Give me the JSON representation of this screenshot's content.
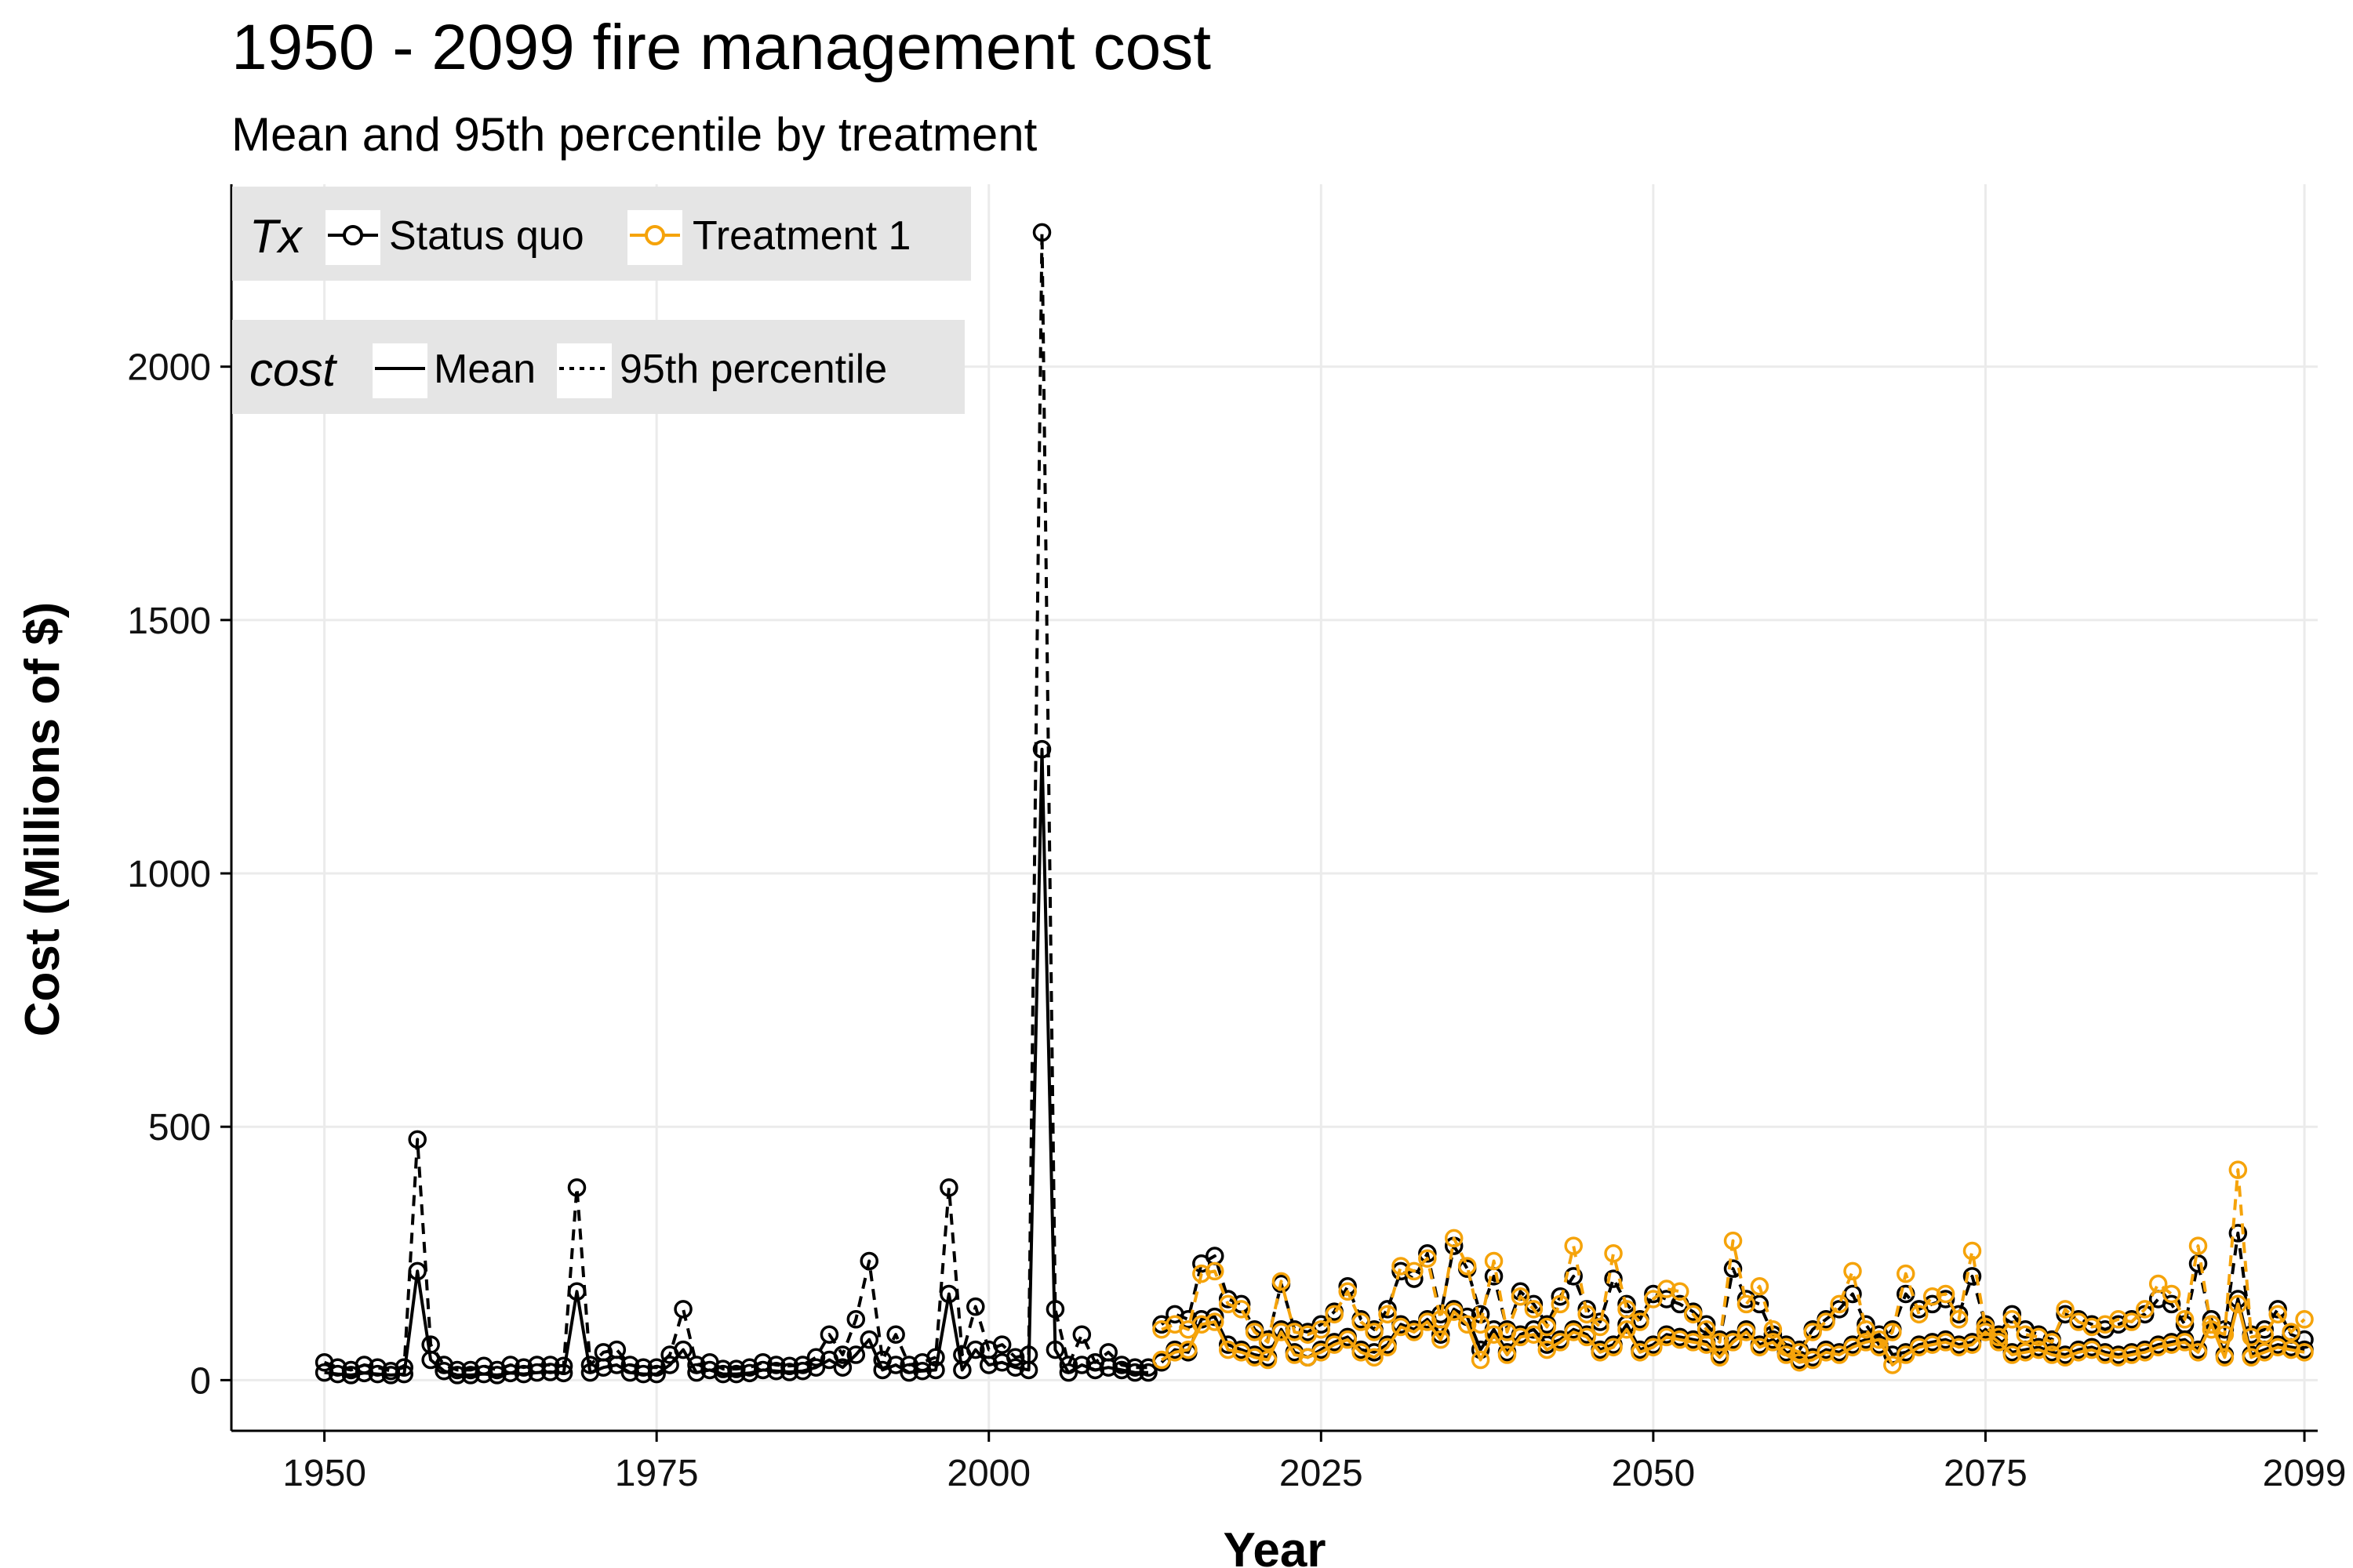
{
  "chart_data": {
    "type": "line",
    "title": "1950 - 2099 fire management cost",
    "subtitle": "Mean and 95th percentile by treatment",
    "xlabel": "Year",
    "ylabel": "Cost (Millions of $)",
    "xlim": [
      1943,
      2100
    ],
    "ylim": [
      -100,
      2360
    ],
    "x_ticks": [
      1950,
      1975,
      2000,
      2025,
      2050,
      2075,
      2099
    ],
    "y_ticks": [
      0,
      500,
      1000,
      1500,
      2000
    ],
    "grid": true,
    "legend": [
      {
        "title": "Tx",
        "entries": [
          {
            "label": "Status quo",
            "color": "#000000"
          },
          {
            "label": "Treatment 1",
            "color": "#f5a30a"
          }
        ]
      },
      {
        "title": "cost",
        "entries": [
          {
            "label": "Mean",
            "linetype": "solid"
          },
          {
            "label": "95th percentile",
            "linetype": "dotted"
          }
        ]
      }
    ],
    "legend_position": "top-left",
    "series": [
      {
        "tx": "Status quo",
        "cost": "Mean",
        "color": "#000000",
        "dash": "",
        "x": [
          1950,
          1951,
          1952,
          1953,
          1954,
          1955,
          1956,
          1957,
          1958,
          1959,
          1960,
          1961,
          1962,
          1963,
          1964,
          1965,
          1966,
          1967,
          1968,
          1969,
          1970,
          1971,
          1972,
          1973,
          1974,
          1975,
          1976,
          1977,
          1978,
          1979,
          1980,
          1981,
          1982,
          1983,
          1984,
          1985,
          1986,
          1987,
          1988,
          1989,
          1990,
          1991,
          1992,
          1993,
          1994,
          1995,
          1996,
          1997,
          1998,
          1999,
          2000,
          2001,
          2002,
          2003,
          2004,
          2005,
          2006,
          2007,
          2008,
          2009,
          2010,
          2011,
          2012
        ],
        "y": [
          15,
          12,
          10,
          14,
          12,
          10,
          12,
          215,
          40,
          18,
          10,
          10,
          12,
          10,
          14,
          12,
          15,
          16,
          14,
          175,
          15,
          25,
          30,
          15,
          12,
          12,
          30,
          60,
          15,
          20,
          12,
          12,
          14,
          20,
          18,
          16,
          18,
          25,
          40,
          25,
          50,
          80,
          20,
          30,
          15,
          18,
          20,
          170,
          20,
          60,
          30,
          35,
          25,
          20,
          1245,
          60,
          15,
          30,
          20,
          25,
          20,
          15,
          15
        ]
      },
      {
        "tx": "Status quo",
        "cost": "95th percentile",
        "color": "#000000",
        "dash": "14,10",
        "x": [
          1950,
          1951,
          1952,
          1953,
          1954,
          1955,
          1956,
          1957,
          1958,
          1959,
          1960,
          1961,
          1962,
          1963,
          1964,
          1965,
          1966,
          1967,
          1968,
          1969,
          1970,
          1971,
          1972,
          1973,
          1974,
          1975,
          1976,
          1977,
          1978,
          1979,
          1980,
          1981,
          1982,
          1983,
          1984,
          1985,
          1986,
          1987,
          1988,
          1989,
          1990,
          1991,
          1992,
          1993,
          1994,
          1995,
          1996,
          1997,
          1998,
          1999,
          2000,
          2001,
          2002,
          2003,
          2004,
          2005,
          2006,
          2007,
          2008,
          2009,
          2010,
          2011,
          2012
        ],
        "y": [
          35,
          25,
          20,
          30,
          25,
          18,
          25,
          475,
          70,
          30,
          20,
          20,
          28,
          20,
          30,
          25,
          30,
          30,
          28,
          380,
          30,
          55,
          60,
          30,
          25,
          25,
          50,
          140,
          30,
          35,
          22,
          22,
          25,
          35,
          30,
          28,
          30,
          45,
          90,
          50,
          120,
          235,
          40,
          90,
          30,
          35,
          45,
          380,
          50,
          145,
          60,
          70,
          45,
          50,
          2265,
          140,
          30,
          90,
          35,
          55,
          30,
          25,
          25
        ]
      },
      {
        "tx": "Status quo",
        "cost": "Mean",
        "color": "#000000",
        "dash": "",
        "x": [
          2013,
          2014,
          2015,
          2016,
          2017,
          2018,
          2019,
          2020,
          2021,
          2022,
          2023,
          2024,
          2025,
          2026,
          2027,
          2028,
          2029,
          2030,
          2031,
          2032,
          2033,
          2034,
          2035,
          2036,
          2037,
          2038,
          2039,
          2040,
          2041,
          2042,
          2043,
          2044,
          2045,
          2046,
          2047,
          2048,
          2049,
          2050,
          2051,
          2052,
          2053,
          2054,
          2055,
          2056,
          2057,
          2058,
          2059,
          2060,
          2061,
          2062,
          2063,
          2064,
          2065,
          2066,
          2067,
          2068,
          2069,
          2070,
          2071,
          2072,
          2073,
          2074,
          2075,
          2076,
          2077,
          2078,
          2079,
          2080,
          2081,
          2082,
          2083,
          2084,
          2085,
          2086,
          2087,
          2088,
          2089,
          2090,
          2091,
          2092,
          2093,
          2094,
          2095,
          2096,
          2097,
          2098,
          2099
        ],
        "y": [
          35,
          60,
          55,
          120,
          125,
          70,
          60,
          50,
          45,
          100,
          55,
          45,
          60,
          75,
          85,
          60,
          55,
          70,
          110,
          100,
          120,
          90,
          140,
          125,
          60,
          100,
          55,
          90,
          100,
          70,
          80,
          100,
          90,
          60,
          70,
          110,
          60,
          70,
          90,
          85,
          80,
          75,
          50,
          80,
          100,
          70,
          80,
          55,
          40,
          45,
          60,
          55,
          70,
          80,
          90,
          50,
          55,
          70,
          75,
          80,
          70,
          75,
          100,
          80,
          55,
          60,
          65,
          55,
          50,
          60,
          65,
          55,
          50,
          55,
          60,
          70,
          75,
          80,
          60,
          120,
          50,
          160,
          50,
          60,
          70,
          65,
          60
        ]
      },
      {
        "tx": "Status quo",
        "cost": "95th percentile",
        "color": "#000000",
        "dash": "14,10",
        "x": [
          2013,
          2014,
          2015,
          2016,
          2017,
          2018,
          2019,
          2020,
          2021,
          2022,
          2023,
          2024,
          2025,
          2026,
          2027,
          2028,
          2029,
          2030,
          2031,
          2032,
          2033,
          2034,
          2035,
          2036,
          2037,
          2038,
          2039,
          2040,
          2041,
          2042,
          2043,
          2044,
          2045,
          2046,
          2047,
          2048,
          2049,
          2050,
          2051,
          2052,
          2053,
          2054,
          2055,
          2056,
          2057,
          2058,
          2059,
          2060,
          2061,
          2062,
          2063,
          2064,
          2065,
          2066,
          2067,
          2068,
          2069,
          2070,
          2071,
          2072,
          2073,
          2074,
          2075,
          2076,
          2077,
          2078,
          2079,
          2080,
          2081,
          2082,
          2083,
          2084,
          2085,
          2086,
          2087,
          2088,
          2089,
          2090,
          2091,
          2092,
          2093,
          2094,
          2095,
          2096,
          2097,
          2098,
          2099
        ],
        "y": [
          110,
          130,
          120,
          230,
          245,
          160,
          150,
          100,
          80,
          190,
          100,
          95,
          110,
          135,
          185,
          120,
          100,
          140,
          215,
          200,
          250,
          130,
          265,
          220,
          130,
          205,
          100,
          175,
          150,
          110,
          165,
          205,
          140,
          115,
          200,
          150,
          120,
          170,
          160,
          150,
          135,
          110,
          80,
          220,
          160,
          150,
          90,
          70,
          60,
          100,
          120,
          140,
          170,
          110,
          70,
          100,
          170,
          140,
          150,
          160,
          130,
          205,
          110,
          90,
          130,
          100,
          90,
          80,
          130,
          120,
          110,
          100,
          110,
          120,
          130,
          160,
          150,
          110,
          230,
          110,
          100,
          290,
          90,
          100,
          140,
          90,
          80
        ]
      },
      {
        "tx": "Treatment 1",
        "cost": "Mean",
        "color": "#f5a30a",
        "dash": "",
        "x": [
          2013,
          2014,
          2015,
          2016,
          2017,
          2018,
          2019,
          2020,
          2021,
          2022,
          2023,
          2024,
          2025,
          2026,
          2027,
          2028,
          2029,
          2030,
          2031,
          2032,
          2033,
          2034,
          2035,
          2036,
          2037,
          2038,
          2039,
          2040,
          2041,
          2042,
          2043,
          2044,
          2045,
          2046,
          2047,
          2048,
          2049,
          2050,
          2051,
          2052,
          2053,
          2054,
          2055,
          2056,
          2057,
          2058,
          2059,
          2060,
          2061,
          2062,
          2063,
          2064,
          2065,
          2066,
          2067,
          2068,
          2069,
          2070,
          2071,
          2072,
          2073,
          2074,
          2075,
          2076,
          2077,
          2078,
          2079,
          2080,
          2081,
          2082,
          2083,
          2084,
          2085,
          2086,
          2087,
          2088,
          2089,
          2090,
          2091,
          2092,
          2093,
          2094,
          2095,
          2096,
          2097,
          2098,
          2099
        ],
        "y": [
          40,
          55,
          60,
          110,
          115,
          60,
          55,
          45,
          40,
          95,
          50,
          45,
          55,
          70,
          80,
          55,
          45,
          65,
          105,
          95,
          115,
          80,
          135,
          110,
          40,
          90,
          50,
          85,
          90,
          60,
          75,
          95,
          85,
          55,
          65,
          100,
          55,
          65,
          85,
          80,
          75,
          70,
          45,
          75,
          95,
          65,
          75,
          50,
          35,
          40,
          55,
          50,
          65,
          75,
          80,
          30,
          50,
          65,
          70,
          75,
          65,
          70,
          95,
          75,
          50,
          55,
          60,
          50,
          45,
          55,
          60,
          50,
          45,
          50,
          55,
          65,
          70,
          75,
          55,
          110,
          45,
          150,
          45,
          55,
          65,
          60,
          55
        ]
      },
      {
        "tx": "Treatment 1",
        "cost": "95th percentile",
        "color": "#f5a30a",
        "dash": "14,10",
        "x": [
          2013,
          2014,
          2015,
          2016,
          2017,
          2018,
          2019,
          2020,
          2021,
          2022,
          2023,
          2024,
          2025,
          2026,
          2027,
          2028,
          2029,
          2030,
          2031,
          2032,
          2033,
          2034,
          2035,
          2036,
          2037,
          2038,
          2039,
          2040,
          2041,
          2042,
          2043,
          2044,
          2045,
          2046,
          2047,
          2048,
          2049,
          2050,
          2051,
          2052,
          2053,
          2054,
          2055,
          2056,
          2057,
          2058,
          2059,
          2060,
          2061,
          2062,
          2063,
          2064,
          2065,
          2066,
          2067,
          2068,
          2069,
          2070,
          2071,
          2072,
          2073,
          2074,
          2075,
          2076,
          2077,
          2078,
          2079,
          2080,
          2081,
          2082,
          2083,
          2084,
          2085,
          2086,
          2087,
          2088,
          2089,
          2090,
          2091,
          2092,
          2093,
          2094,
          2095,
          2096,
          2097,
          2098,
          2099
        ],
        "y": [
          100,
          110,
          100,
          210,
          215,
          150,
          140,
          95,
          75,
          195,
          95,
          90,
          100,
          130,
          175,
          115,
          95,
          130,
          225,
          215,
          240,
          120,
          280,
          225,
          110,
          235,
          95,
          165,
          140,
          105,
          150,
          265,
          130,
          105,
          250,
          140,
          115,
          160,
          180,
          175,
          130,
          100,
          75,
          275,
          150,
          185,
          100,
          65,
          55,
          95,
          115,
          150,
          215,
          100,
          65,
          95,
          210,
          130,
          165,
          170,
          120,
          255,
          105,
          85,
          120,
          90,
          85,
          75,
          140,
          115,
          105,
          110,
          120,
          115,
          140,
          190,
          170,
          120,
          265,
          100,
          90,
          415,
          85,
          90,
          130,
          95,
          120
        ]
      }
    ]
  }
}
